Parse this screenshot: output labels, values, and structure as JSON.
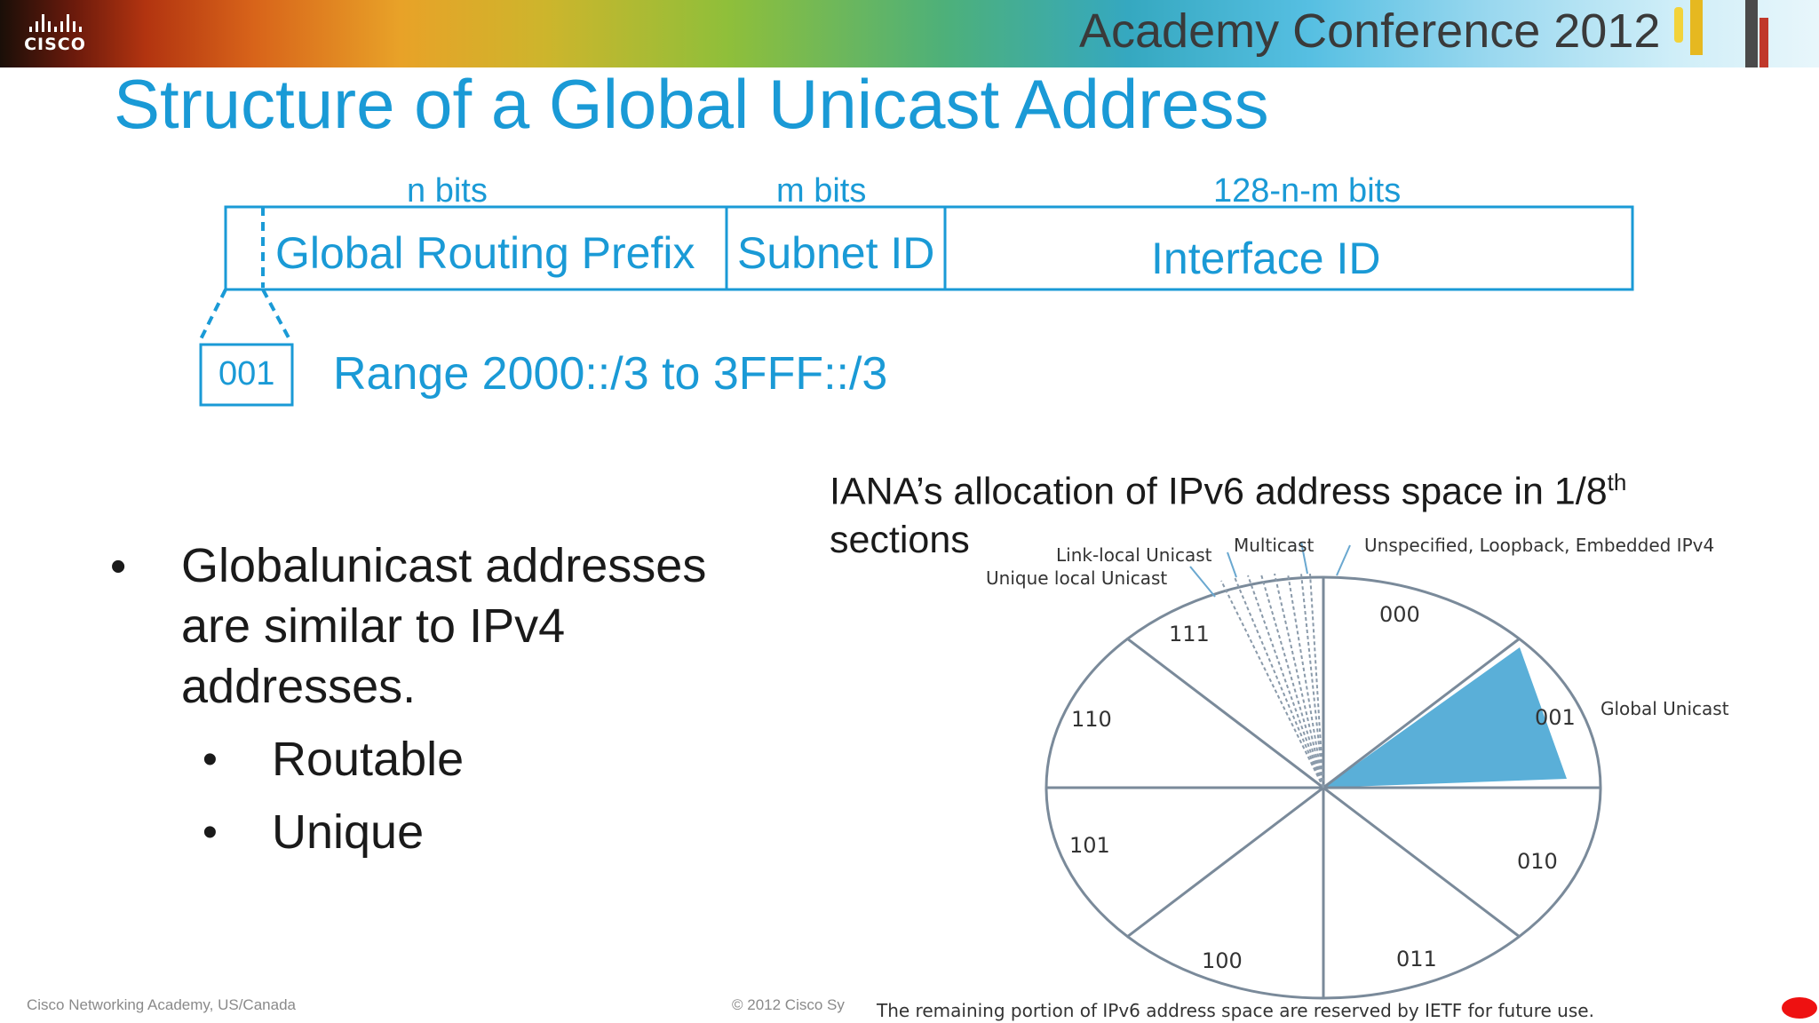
{
  "banner": {
    "logo_text": "CISCO",
    "conference_title": "Academy Conference 2012"
  },
  "slide": {
    "title": "Structure of a Global Unicast Address"
  },
  "address_structure": {
    "fields": [
      {
        "label": "Global Routing Prefix",
        "bits": "n bits"
      },
      {
        "label": "Subnet ID",
        "bits": "m bits"
      },
      {
        "label": "Interface ID",
        "bits": "128-n-m bits"
      }
    ],
    "prefix_bits": "001",
    "range_text": "Range 2000::/3 to 3FFF::/3"
  },
  "bullets": {
    "main": "Globalunicast addresses are similar to IPv4 addresses.",
    "main_lines": [
      "Globalunicast addresses",
      "are similar to IPv4",
      "addresses."
    ],
    "sub": [
      "Routable",
      "Unique"
    ]
  },
  "iana": {
    "caption_main": "IANA’s allocation of IPv6 address space in 1/8",
    "caption_sup": "th",
    "caption_line2": "sections",
    "sections": [
      "000",
      "001",
      "010",
      "011",
      "100",
      "101",
      "110",
      "111"
    ],
    "highlighted_section": "001",
    "callouts": {
      "link_local": "Link-local Unicast",
      "unique_local": "Unique local Unicast",
      "multicast": "Multicast",
      "unspecified": "Unspecified, Loopback, Embedded IPv4",
      "global_unicast": "Global Unicast"
    },
    "note": "The remaining portion of IPv6 address space are reserved by IETF for future use.",
    "colors": {
      "highlight": "#5aafd8",
      "lines": "#7a8a9a"
    }
  },
  "footer": {
    "left": "Cisco Networking Academy, US/Canada",
    "center": "© 2012 Cisco Sy"
  }
}
